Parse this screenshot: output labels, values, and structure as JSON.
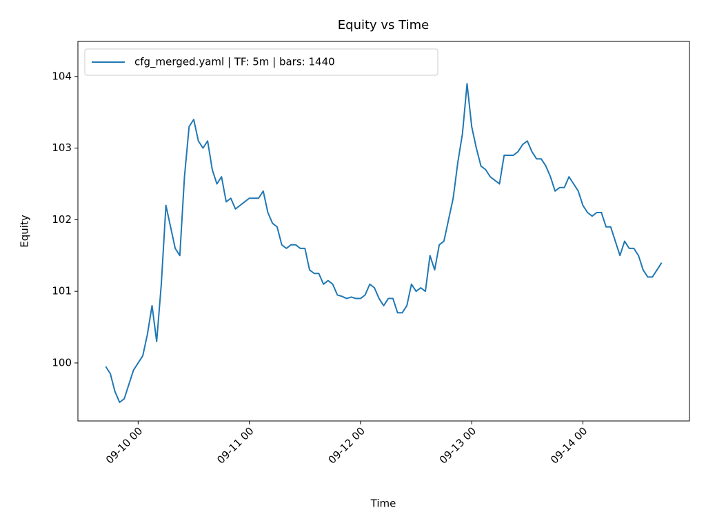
{
  "chart_data": {
    "type": "line",
    "title": "Equity vs Time",
    "x_label": "Time",
    "y_label": "Equity",
    "x": [
      "09-09 17",
      "09-09 18",
      "09-09 19",
      "09-09 20",
      "09-09 21",
      "09-09 22",
      "09-09 23",
      "09-10 00",
      "09-10 01",
      "09-10 02",
      "09-10 03",
      "09-10 04",
      "09-10 05",
      "09-10 06",
      "09-10 07",
      "09-10 08",
      "09-10 09",
      "09-10 10",
      "09-10 11",
      "09-10 12",
      "09-10 13",
      "09-10 14",
      "09-10 15",
      "09-10 16",
      "09-10 17",
      "09-10 18",
      "09-10 19",
      "09-10 20",
      "09-10 21",
      "09-10 22",
      "09-10 23",
      "09-11 00",
      "09-11 01",
      "09-11 02",
      "09-11 03",
      "09-11 04",
      "09-11 05",
      "09-11 06",
      "09-11 07",
      "09-11 08",
      "09-11 09",
      "09-11 10",
      "09-11 11",
      "09-11 12",
      "09-11 13",
      "09-11 14",
      "09-11 15",
      "09-11 16",
      "09-11 17",
      "09-11 18",
      "09-11 19",
      "09-11 20",
      "09-11 21",
      "09-11 22",
      "09-11 23",
      "09-12 00",
      "09-12 01",
      "09-12 02",
      "09-12 03",
      "09-12 04",
      "09-12 05",
      "09-12 06",
      "09-12 07",
      "09-12 08",
      "09-12 09",
      "09-12 10",
      "09-12 11",
      "09-12 12",
      "09-12 13",
      "09-12 14",
      "09-12 15",
      "09-12 16",
      "09-12 17",
      "09-12 18",
      "09-12 19",
      "09-12 20",
      "09-12 21",
      "09-12 22",
      "09-12 23",
      "09-13 00",
      "09-13 01",
      "09-13 02",
      "09-13 03",
      "09-13 04",
      "09-13 05",
      "09-13 06",
      "09-13 07",
      "09-13 08",
      "09-13 09",
      "09-13 10",
      "09-13 11",
      "09-13 12",
      "09-13 13",
      "09-13 14",
      "09-13 15",
      "09-13 16",
      "09-13 17",
      "09-13 18",
      "09-13 19",
      "09-13 20",
      "09-13 21",
      "09-13 22",
      "09-13 23",
      "09-14 00",
      "09-14 01",
      "09-14 02",
      "09-14 03",
      "09-14 04",
      "09-14 05",
      "09-14 06",
      "09-14 07",
      "09-14 08",
      "09-14 09",
      "09-14 10",
      "09-14 11",
      "09-14 12",
      "09-14 13",
      "09-14 14",
      "09-14 15",
      "09-14 16",
      "09-14 17"
    ],
    "series": [
      {
        "name": "cfg_merged.yaml | TF: 5m | bars: 1440",
        "color": "#1f77b4",
        "values": [
          99.95,
          99.85,
          99.6,
          99.45,
          99.5,
          99.7,
          99.9,
          100.0,
          100.1,
          100.4,
          100.8,
          100.3,
          101.1,
          102.2,
          101.9,
          101.6,
          101.5,
          102.6,
          103.3,
          103.4,
          103.1,
          103.0,
          103.1,
          102.7,
          102.5,
          102.6,
          102.25,
          102.3,
          102.15,
          102.2,
          102.25,
          102.3,
          102.3,
          102.3,
          102.4,
          102.1,
          101.95,
          101.9,
          101.65,
          101.6,
          101.65,
          101.65,
          101.6,
          101.6,
          101.3,
          101.25,
          101.25,
          101.1,
          101.15,
          101.1,
          100.95,
          100.93,
          100.9,
          100.92,
          100.9,
          100.9,
          100.95,
          101.1,
          101.05,
          100.9,
          100.8,
          100.9,
          100.9,
          100.7,
          100.7,
          100.8,
          101.1,
          101.0,
          101.05,
          101.0,
          101.5,
          101.3,
          101.65,
          101.7,
          102.0,
          102.3,
          102.8,
          103.2,
          103.9,
          103.3,
          103.0,
          102.75,
          102.7,
          102.6,
          102.55,
          102.5,
          102.9,
          102.9,
          102.9,
          102.95,
          103.05,
          103.1,
          102.95,
          102.85,
          102.85,
          102.75,
          102.6,
          102.4,
          102.45,
          102.45,
          102.6,
          102.5,
          102.4,
          102.2,
          102.1,
          102.05,
          102.1,
          102.1,
          101.9,
          101.9,
          101.7,
          101.5,
          101.7,
          101.6,
          101.6,
          101.5,
          101.3,
          101.2,
          101.2,
          101.3,
          101.4
        ]
      }
    ],
    "xlim": [
      "09-09 11",
      "09-14 23"
    ],
    "xticks": [
      "09-10 00",
      "09-11 00",
      "09-12 00",
      "09-13 00",
      "09-14 00"
    ],
    "ylim": [
      99.19,
      104.49
    ],
    "yticks": [
      100,
      101,
      102,
      103,
      104
    ],
    "legend": "upper left",
    "grid": false
  }
}
